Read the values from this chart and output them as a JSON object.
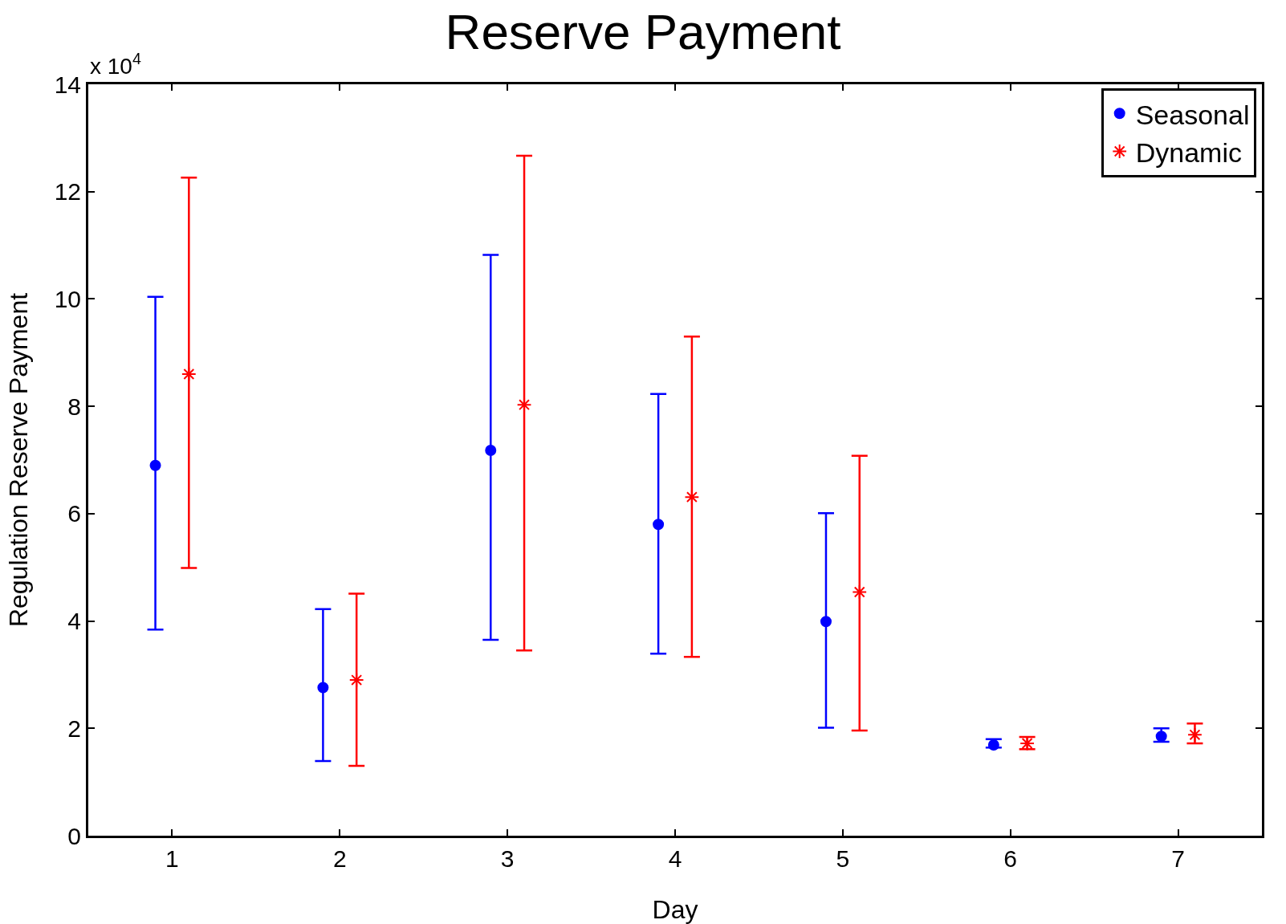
{
  "chart_data": {
    "type": "scatter",
    "title": "Reserve Payment",
    "xlabel": "Day",
    "ylabel": "Regulation Reserve Payment",
    "annotations": [
      "x 10$^{4}$"
    ],
    "xlim": [
      0.5,
      7.5
    ],
    "xticks": [
      1,
      2,
      3,
      4,
      5,
      6,
      7
    ],
    "ylim": [
      0,
      14
    ],
    "yticks": [
      0,
      2,
      4,
      6,
      8,
      10,
      12,
      14
    ],
    "grid": false,
    "legend": "top right",
    "series": [
      {
        "name": "Seasonal",
        "color": "#0000ff",
        "marker": "circle",
        "x": [
          0.9,
          1.9,
          2.9,
          3.9,
          4.9,
          5.9,
          6.9
        ],
        "values": [
          6.9,
          2.76,
          7.18,
          5.8,
          3.99,
          1.69,
          1.85
        ],
        "errors": [
          [
            3.84,
            10.04
          ],
          [
            1.39,
            4.22
          ],
          [
            3.65,
            10.82
          ],
          [
            3.39,
            8.23
          ],
          [
            2.01,
            6.01
          ],
          [
            1.64,
            1.8
          ],
          [
            1.75,
            2.0
          ]
        ]
      },
      {
        "name": "Dynamic",
        "color": "#ff0000",
        "marker": "cross",
        "x": [
          1.1,
          2.1,
          3.1,
          4.1,
          5.1,
          6.1,
          7.1
        ],
        "values": [
          8.6,
          2.9,
          8.03,
          6.31,
          4.54,
          1.72,
          1.88
        ],
        "errors": [
          [
            4.99,
            12.26
          ],
          [
            1.3,
            4.51
          ],
          [
            3.45,
            12.67
          ],
          [
            3.33,
            9.3
          ],
          [
            1.96,
            7.08
          ],
          [
            1.61,
            1.84
          ],
          [
            1.72,
            2.09
          ]
        ]
      }
    ]
  }
}
